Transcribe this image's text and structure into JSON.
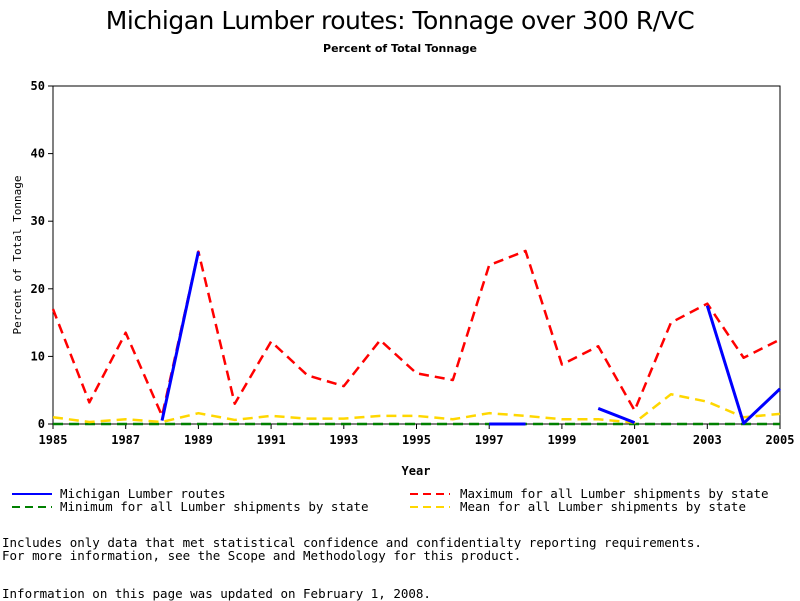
{
  "chart_data": {
    "type": "line",
    "title": "Michigan Lumber routes: Tonnage over 300 R/VC",
    "subtitle": "Percent of Total Tonnage",
    "xlabel": "Year",
    "ylabel": "Percent of Total Tonnage",
    "xlim": [
      1985,
      2005
    ],
    "ylim": [
      0,
      50
    ],
    "xticks": [
      1985,
      1987,
      1989,
      1991,
      1993,
      1995,
      1997,
      1999,
      2001,
      2003,
      2005
    ],
    "yticks": [
      0,
      10,
      20,
      30,
      40,
      50
    ],
    "grid": false,
    "legend_position": "bottom",
    "series": [
      {
        "name": "Michigan Lumber routes",
        "color": "#0000ff",
        "style": "solid",
        "x": [
          1988,
          1989,
          1990,
          1991,
          1992,
          1993,
          1994,
          1995,
          1996,
          1997,
          1998,
          1999,
          2000,
          2001,
          2002,
          2003,
          2004,
          2005
        ],
        "y": [
          0.5,
          25.5,
          null,
          null,
          null,
          null,
          null,
          null,
          null,
          0.0,
          0.0,
          null,
          2.3,
          0.2,
          null,
          17.5,
          0.1,
          5.2
        ]
      },
      {
        "name": "Maximum for all Lumber shipments by state",
        "color": "#ff0000",
        "style": "dashed",
        "x": [
          1985,
          1986,
          1987,
          1988,
          1989,
          1990,
          1991,
          1992,
          1993,
          1994,
          1995,
          1996,
          1997,
          1998,
          1999,
          2000,
          2001,
          2002,
          2003,
          2004,
          2005
        ],
        "y": [
          17.0,
          3.2,
          13.5,
          1.2,
          25.5,
          3.0,
          12.2,
          7.2,
          5.6,
          12.4,
          7.5,
          6.5,
          23.5,
          25.6,
          8.8,
          11.5,
          2.0,
          15.0,
          17.8,
          9.8,
          12.5
        ]
      },
      {
        "name": "Minimum for all Lumber shipments by state",
        "color": "#008000",
        "style": "dashed",
        "x": [
          1985,
          1986,
          1987,
          1988,
          1989,
          1990,
          1991,
          1992,
          1993,
          1994,
          1995,
          1996,
          1997,
          1998,
          1999,
          2000,
          2001,
          2002,
          2003,
          2004,
          2005
        ],
        "y": [
          0,
          0,
          0,
          0,
          0,
          0,
          0,
          0,
          0,
          0,
          0,
          0,
          0,
          0,
          0,
          0,
          0,
          0,
          0,
          0,
          0
        ]
      },
      {
        "name": "Mean for all Lumber shipments by state",
        "color": "#ffd700",
        "style": "dashed",
        "x": [
          1985,
          1986,
          1987,
          1988,
          1989,
          1990,
          1991,
          1992,
          1993,
          1994,
          1995,
          1996,
          1997,
          1998,
          1999,
          2000,
          2001,
          2002,
          2003,
          2004,
          2005
        ],
        "y": [
          1.0,
          0.3,
          0.7,
          0.3,
          1.6,
          0.6,
          1.2,
          0.8,
          0.8,
          1.2,
          1.2,
          0.7,
          1.6,
          1.2,
          0.7,
          0.7,
          0.2,
          4.4,
          3.3,
          1.0,
          1.5
        ]
      }
    ]
  },
  "footnotes": {
    "line1": "Includes only data that met statistical confidence and confidentialty reporting requirements.",
    "line2": "For more information, see the Scope and Methodology for this product.",
    "line3": "Information on this page was updated on February 1, 2008."
  }
}
